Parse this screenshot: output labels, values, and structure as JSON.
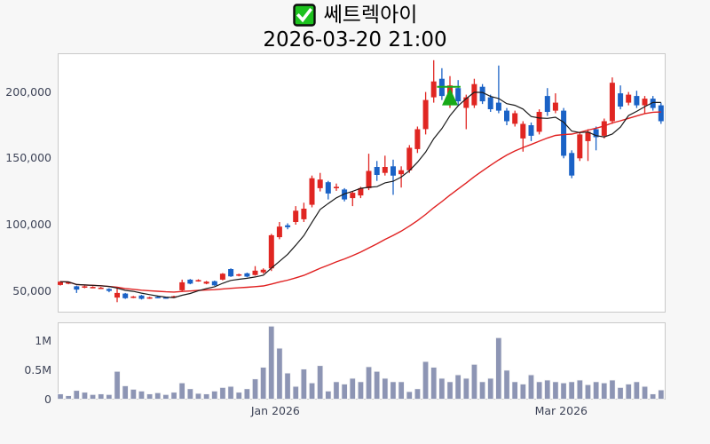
{
  "header": {
    "icon": "checked-checkbox",
    "title": "쎄트렉아이",
    "subtitle": "2026-03-20 21:00"
  },
  "chart_data": {
    "type": "candlestick",
    "title": "쎄트렉아이",
    "subtitle": "2026-03-20 21:00",
    "legend": "none",
    "grid": false,
    "price_axis": {
      "range": [
        34000,
        228900
      ],
      "ticks": [
        {
          "label": "200,000",
          "value": 200000
        },
        {
          "label": "150,000",
          "value": 150000
        },
        {
          "label": "100,000",
          "value": 100000
        },
        {
          "label": "50,000",
          "value": 50000
        }
      ]
    },
    "volume_axis": {
      "range": [
        0,
        1318000
      ],
      "ticks": [
        {
          "label": "1M",
          "value": 1000000
        },
        {
          "label": "0.5M",
          "value": 500000
        },
        {
          "label": "0",
          "value": 0
        }
      ]
    },
    "x_axis": {
      "ticks": [
        {
          "label": "Jan 2026",
          "index": 26.5
        },
        {
          "label": "Mar 2026",
          "index": 61.7
        }
      ]
    },
    "series": {
      "columns": [
        "open",
        "high",
        "low",
        "close",
        "volume"
      ],
      "ohlcv": [
        [
          54500,
          57500,
          54000,
          57000,
          90000
        ],
        [
          55500,
          57000,
          55000,
          56500,
          60000
        ],
        [
          53500,
          54000,
          48500,
          51000,
          150000
        ],
        [
          52500,
          54000,
          52000,
          53500,
          120000
        ],
        [
          52500,
          53500,
          52000,
          53000,
          80000
        ],
        [
          52000,
          53000,
          51500,
          52500,
          90000
        ],
        [
          51500,
          52000,
          49000,
          50000,
          80000
        ],
        [
          45000,
          52000,
          41500,
          48500,
          480000
        ],
        [
          48000,
          48500,
          44000,
          44500,
          230000
        ],
        [
          45000,
          46200,
          44500,
          45800,
          170000
        ],
        [
          46500,
          47000,
          43500,
          44000,
          140000
        ],
        [
          44500,
          45600,
          44000,
          45200,
          90000
        ],
        [
          45500,
          46000,
          44500,
          44800,
          110000
        ],
        [
          45200,
          45600,
          44200,
          44600,
          80000
        ],
        [
          45000,
          46400,
          44600,
          46000,
          120000
        ],
        [
          50500,
          58500,
          49500,
          56500,
          280000
        ],
        [
          58500,
          59000,
          55000,
          55500,
          180000
        ],
        [
          57500,
          58800,
          57000,
          58200,
          100000
        ],
        [
          55500,
          57500,
          55000,
          57000,
          90000
        ],
        [
          57300,
          57800,
          53800,
          54200,
          140000
        ],
        [
          58500,
          63500,
          58000,
          63000,
          200000
        ],
        [
          66500,
          67000,
          60500,
          61000,
          220000
        ],
        [
          61500,
          63000,
          61000,
          62500,
          120000
        ],
        [
          63300,
          63800,
          60300,
          60800,
          180000
        ],
        [
          62000,
          68700,
          61500,
          65300,
          350000
        ],
        [
          64000,
          67000,
          63000,
          66000,
          550000
        ],
        [
          67000,
          93000,
          65000,
          92000,
          1260000
        ],
        [
          90500,
          102000,
          89000,
          98500,
          880000
        ],
        [
          99500,
          101000,
          96500,
          98000,
          450000
        ],
        [
          102000,
          114000,
          100000,
          110500,
          220000
        ],
        [
          104000,
          116500,
          102000,
          112000,
          520000
        ],
        [
          115000,
          137000,
          113000,
          135000,
          280000
        ],
        [
          127500,
          139000,
          125000,
          134000,
          580000
        ],
        [
          132000,
          133000,
          119000,
          123500,
          140000
        ],
        [
          127500,
          131000,
          125500,
          128500,
          300000
        ],
        [
          126500,
          127500,
          117500,
          119000,
          260000
        ],
        [
          120000,
          125000,
          114000,
          124000,
          360000
        ],
        [
          122000,
          128500,
          120000,
          127500,
          300000
        ],
        [
          127500,
          153500,
          126000,
          140500,
          560000
        ],
        [
          143500,
          148000,
          133000,
          137500,
          480000
        ],
        [
          139000,
          152000,
          137000,
          143500,
          360000
        ],
        [
          144000,
          149000,
          122500,
          137000,
          300000
        ],
        [
          138000,
          144000,
          128000,
          141000,
          300000
        ],
        [
          141000,
          160000,
          139000,
          158000,
          130000
        ],
        [
          157000,
          174000,
          154000,
          172000,
          180000
        ],
        [
          172000,
          200000,
          168000,
          194000,
          650000
        ],
        [
          196000,
          224000,
          192000,
          208000,
          550000
        ],
        [
          210000,
          218000,
          194000,
          197000,
          360000
        ],
        [
          196000,
          212000,
          188000,
          205000,
          300000
        ],
        [
          203000,
          209000,
          190000,
          193000,
          420000
        ],
        [
          188000,
          198000,
          172000,
          196000,
          360000
        ],
        [
          190000,
          210000,
          188000,
          206000,
          600000
        ],
        [
          204000,
          206000,
          191000,
          193000,
          300000
        ],
        [
          196000,
          198000,
          185000,
          187000,
          360000
        ],
        [
          192000,
          220000,
          184000,
          186000,
          1060000
        ],
        [
          186000,
          188000,
          175000,
          178000,
          500000
        ],
        [
          176000,
          186000,
          174000,
          184000,
          300000
        ],
        [
          165000,
          178000,
          155000,
          176000,
          260000
        ],
        [
          175000,
          177000,
          163000,
          167000,
          420000
        ],
        [
          170000,
          187000,
          168000,
          185000,
          300000
        ],
        [
          197000,
          203000,
          182000,
          185000,
          330000
        ],
        [
          186000,
          199000,
          184000,
          192000,
          300000
        ],
        [
          186000,
          188000,
          150000,
          152000,
          280000
        ],
        [
          154000,
          156000,
          135000,
          137000,
          300000
        ],
        [
          150000,
          170000,
          148000,
          168000,
          330000
        ],
        [
          163000,
          172000,
          148000,
          170000,
          250000
        ],
        [
          172000,
          174000,
          156000,
          166000,
          300000
        ],
        [
          167000,
          180000,
          165000,
          178000,
          280000
        ],
        [
          178000,
          211000,
          176000,
          207000,
          330000
        ],
        [
          199000,
          205000,
          187000,
          189000,
          200000
        ],
        [
          192000,
          200000,
          190000,
          198000,
          260000
        ],
        [
          197000,
          201000,
          188000,
          190000,
          300000
        ],
        [
          190000,
          197000,
          184000,
          195000,
          220000
        ],
        [
          195000,
          197000,
          186000,
          188000,
          90000
        ],
        [
          190000,
          192000,
          176000,
          178000,
          160000
        ]
      ]
    },
    "moving_averages": [
      {
        "name": "ma-long-line",
        "period": 30,
        "color": "#e02020",
        "width": 1.4
      },
      {
        "name": "ma-short-line",
        "period": 7,
        "color": "#1a1a1a",
        "width": 1.2
      }
    ],
    "marker": {
      "type": "triangle-up",
      "index": 48,
      "tip_price": 203000,
      "base_price": 190000,
      "line_price": 204000,
      "line_span": [
        46.4,
        49.3
      ],
      "color": "#18a918"
    },
    "colors": {
      "up": "#e02622",
      "down": "#1a62c6",
      "volume": "#8d95b4",
      "bg": "#f7f7f7",
      "plot_bg": "#ffffff",
      "spine": "#c9c9c9",
      "tick_label": "#3d4357",
      "title": "#000000"
    }
  }
}
